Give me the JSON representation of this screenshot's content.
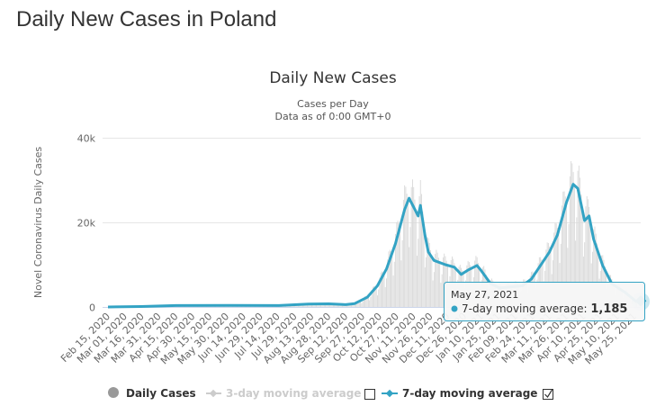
{
  "page": {
    "title": "Daily New Cases in Poland"
  },
  "chart_data": {
    "type": "bar+line",
    "title": "Daily New Cases",
    "subtitle_line1": "Cases per Day",
    "subtitle_line2": "Data as of 0:00 GMT+0",
    "ylabel": "Novel Coronavirus Daily Cases",
    "ylim": [
      0,
      40000
    ],
    "y_ticks": [
      {
        "value": 0,
        "label": "0"
      },
      {
        "value": 20000,
        "label": "20k"
      },
      {
        "value": 40000,
        "label": "40k"
      }
    ],
    "x_start": "2020-02-15",
    "x_end": "2021-05-27",
    "x_tick_labels": [
      "Feb 15, 2020",
      "Mar 01, 2020",
      "Mar 16, 2020",
      "Mar 31, 2020",
      "Apr 15, 2020",
      "Apr 30, 2020",
      "May 15, 2020",
      "May 30, 2020",
      "Jun 14, 2020",
      "Jun 29, 2020",
      "Jul 14, 2020",
      "Jul 29, 2020",
      "Aug 13, 2020",
      "Aug 28, 2020",
      "Sep 12, 2020",
      "Sep 27, 2020",
      "Oct 12, 2020",
      "Oct 27, 2020",
      "Nov 11, 2020",
      "Nov 26, 2020",
      "Dec 11, 2020",
      "Dec 26, 2020",
      "Jan 10, 2021",
      "Jan 25, 2021",
      "Feb 09, 2021",
      "Feb 24, 2021",
      "Mar 11, 2021",
      "Mar 26, 2021",
      "Apr 10, 2021",
      "Apr 25, 2021",
      "May 10, 2021",
      "May 25, 2021"
    ],
    "grid": true,
    "legend": {
      "placement": "bottom",
      "items": [
        {
          "name": "Daily Cases",
          "visible": true,
          "color": "#999999"
        },
        {
          "name": "3-day moving average",
          "visible": false,
          "color": "#cccccc"
        },
        {
          "name": "7-day moving average",
          "visible": true,
          "color": "#33a3c4"
        }
      ]
    },
    "series_7day": [
      [
        "2020-02-15",
        0
      ],
      [
        "2020-03-15",
        100
      ],
      [
        "2020-04-15",
        350
      ],
      [
        "2020-06-01",
        380
      ],
      [
        "2020-07-15",
        350
      ],
      [
        "2020-08-10",
        700
      ],
      [
        "2020-08-28",
        750
      ],
      [
        "2020-09-12",
        550
      ],
      [
        "2020-09-20",
        800
      ],
      [
        "2020-10-01",
        2300
      ],
      [
        "2020-10-10",
        5000
      ],
      [
        "2020-10-18",
        9000
      ],
      [
        "2020-10-26",
        15000
      ],
      [
        "2020-11-03",
        23000
      ],
      [
        "2020-11-07",
        25700
      ],
      [
        "2020-11-11",
        23600
      ],
      [
        "2020-11-15",
        21500
      ],
      [
        "2020-11-17",
        24000
      ],
      [
        "2020-11-21",
        17000
      ],
      [
        "2020-11-24",
        13000
      ],
      [
        "2020-11-29",
        11000
      ],
      [
        "2020-12-09",
        10000
      ],
      [
        "2020-12-17",
        9400
      ],
      [
        "2020-12-23",
        7700
      ],
      [
        "2020-12-29",
        8700
      ],
      [
        "2021-01-06",
        9800
      ],
      [
        "2021-01-10",
        8500
      ],
      [
        "2021-01-18",
        5500
      ],
      [
        "2021-01-26",
        4500
      ],
      [
        "2021-02-15",
        5000
      ],
      [
        "2021-02-23",
        6600
      ],
      [
        "2021-03-03",
        9800
      ],
      [
        "2021-03-11",
        13000
      ],
      [
        "2021-03-18",
        17000
      ],
      [
        "2021-03-26",
        24700
      ],
      [
        "2021-04-01",
        29000
      ],
      [
        "2021-04-05",
        28000
      ],
      [
        "2021-04-11",
        20400
      ],
      [
        "2021-04-15",
        21500
      ],
      [
        "2021-04-19",
        16000
      ],
      [
        "2021-04-27",
        9800
      ],
      [
        "2021-05-05",
        5500
      ],
      [
        "2021-05-17",
        3400
      ],
      [
        "2021-05-27",
        1185
      ]
    ],
    "daily_weekday_factors": [
      0.55,
      0.75,
      1.15,
      1.25,
      1.2,
      1.1,
      1.0
    ],
    "tooltip": {
      "date": "May 27, 2021",
      "series": "7-day moving average",
      "value": "1,185"
    }
  }
}
